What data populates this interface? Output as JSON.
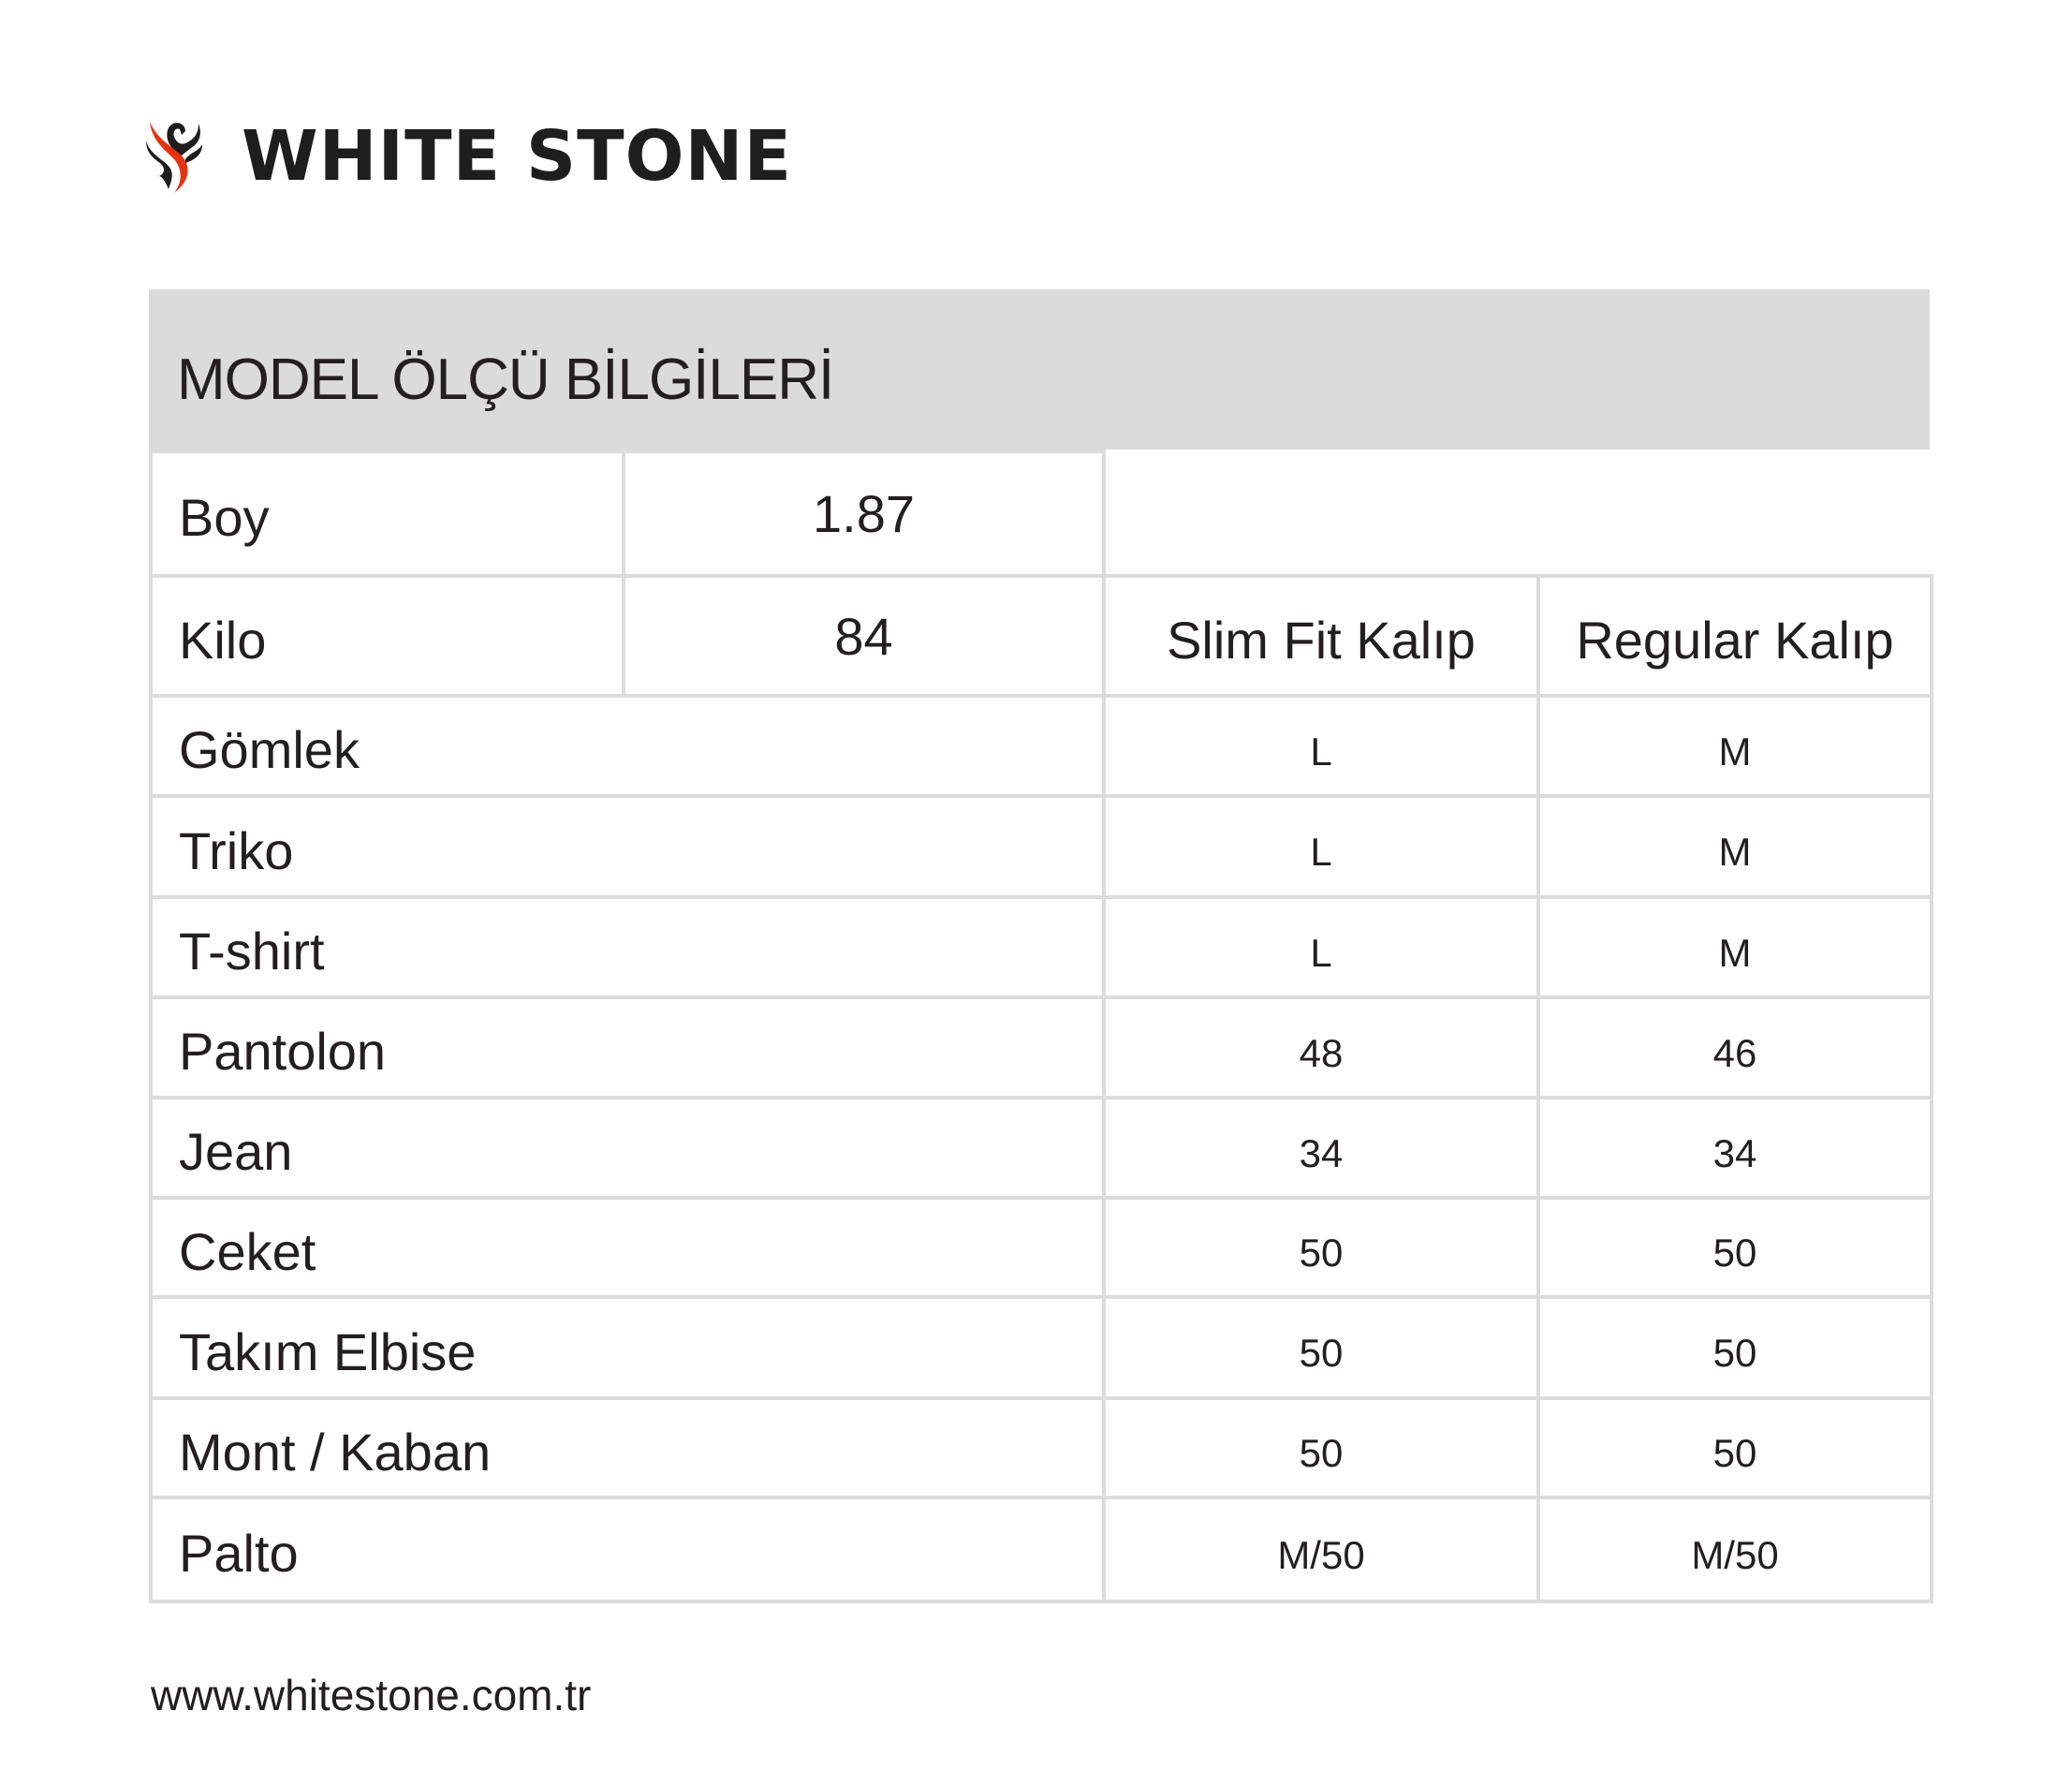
{
  "brand": {
    "name": "WHITE STONE",
    "logo_icon": "phoenix-logo-icon",
    "accent_color": "#e63312"
  },
  "section_title": "MODEL ÖLÇÜ BİLGİLERİ",
  "model": {
    "height_label": "Boy",
    "height_value": "1.87",
    "weight_label": "Kilo",
    "weight_value": "84"
  },
  "columns": {
    "slim": "Slim Fit Kalıp",
    "regular": "Regular Kalıp"
  },
  "rows": [
    {
      "label": "Gömlek",
      "slim": "L",
      "regular": "M"
    },
    {
      "label": "Triko",
      "slim": "L",
      "regular": "M"
    },
    {
      "label": "T-shirt",
      "slim": "L",
      "regular": "M"
    },
    {
      "label": "Pantolon",
      "slim": "48",
      "regular": "46"
    },
    {
      "label": "Jean",
      "slim": "34",
      "regular": "34"
    },
    {
      "label": "Ceket",
      "slim": "50",
      "regular": "50"
    },
    {
      "label": "Takım Elbise",
      "slim": "50",
      "regular": "50"
    },
    {
      "label": "Mont / Kaban",
      "slim": "50",
      "regular": "50"
    },
    {
      "label": "Palto",
      "slim": "M/50",
      "regular": "M/50"
    }
  ],
  "footer": {
    "url": "www.whitestone.com.tr"
  }
}
